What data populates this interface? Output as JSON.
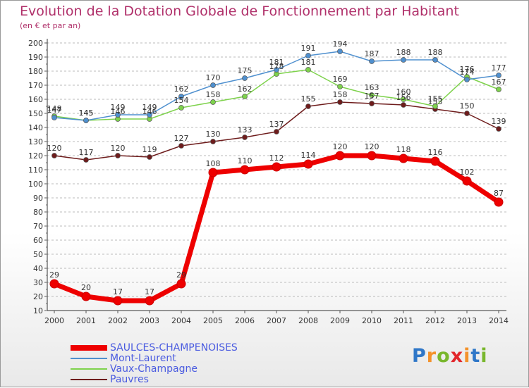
{
  "chart_data": {
    "type": "line",
    "title": "Evolution de la Dotation Globale de Fonctionnement par Habitant",
    "subtitle": "(en € et par an)",
    "x": [
      "2000",
      "2001",
      "2002",
      "2003",
      "2004",
      "2005",
      "2006",
      "2007",
      "2008",
      "2009",
      "2010",
      "2011",
      "2012",
      "2013",
      "2014"
    ],
    "ylim": [
      10,
      200
    ],
    "yticks": [
      10,
      20,
      30,
      40,
      50,
      60,
      70,
      80,
      90,
      100,
      110,
      120,
      130,
      140,
      150,
      160,
      170,
      180,
      190,
      200
    ],
    "grid": "horizontal-dashed",
    "legend_position": "bottom-left",
    "series": [
      {
        "name": "SAULCES-CHAMPENOISES",
        "color": "#ee0000",
        "values": [
          29,
          20,
          17,
          17,
          29,
          108,
          110,
          112,
          114,
          120,
          120,
          118,
          116,
          102,
          87
        ]
      },
      {
        "name": "Mont-Laurent",
        "color": "#4f90cf",
        "values": [
          147,
          145,
          149,
          149,
          162,
          170,
          175,
          181,
          191,
          194,
          187,
          188,
          188,
          174,
          177
        ]
      },
      {
        "name": "Vaux-Champagne",
        "color": "#7ed24c",
        "values": [
          148,
          145,
          146,
          146,
          154,
          158,
          162,
          178,
          181,
          169,
          163,
          160,
          155,
          176,
          167
        ]
      },
      {
        "name": "Pauvres",
        "color": "#6e1c1c",
        "values": [
          120,
          117,
          120,
          119,
          127,
          130,
          133,
          137,
          155,
          158,
          157,
          156,
          153,
          150,
          139
        ]
      }
    ]
  },
  "logo": {
    "letters": [
      "P",
      "r",
      "o",
      "x",
      "i",
      "t",
      "i"
    ],
    "colors": [
      "#2f77c8",
      "#f4922b",
      "#79b72d",
      "#e2262b",
      "#f4922b",
      "#2f77c8",
      "#79b72d"
    ]
  }
}
